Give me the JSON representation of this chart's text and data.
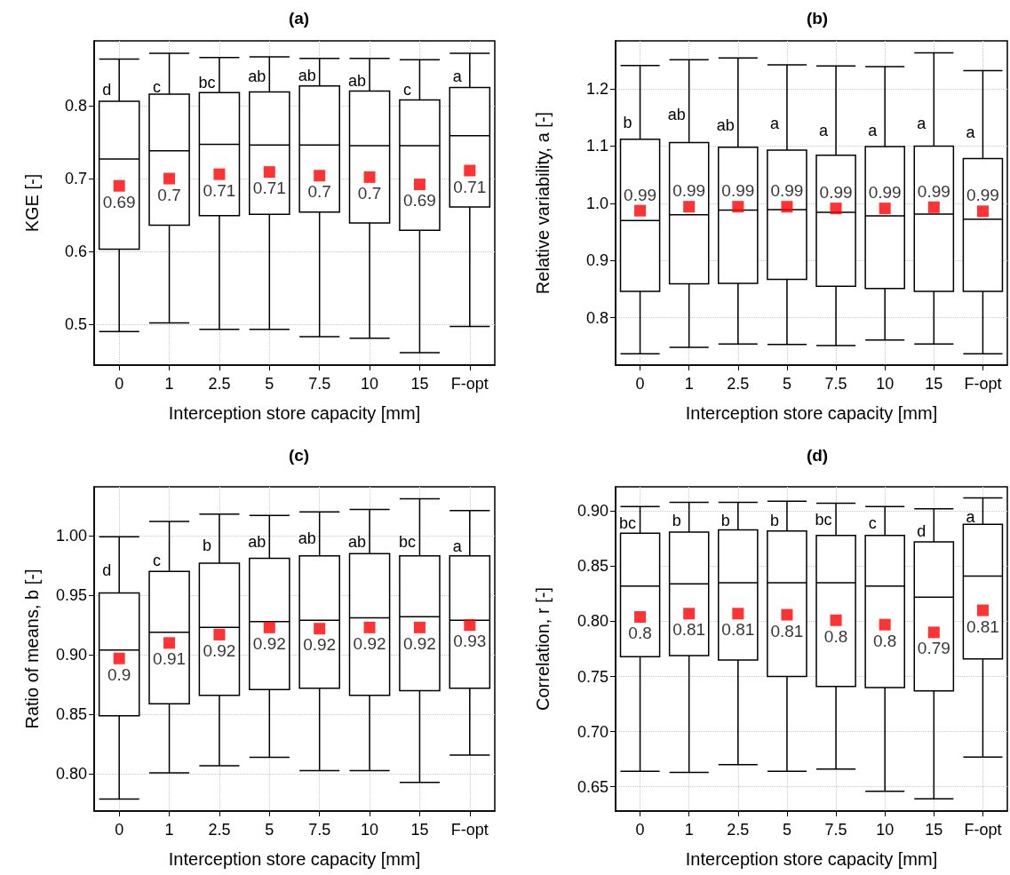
{
  "chart_data": [
    {
      "type": "box",
      "title": "(a)",
      "xlabel": "Interception store capacity [mm]",
      "ylabel": "KGE [-]",
      "categories": [
        "0",
        "1",
        "2.5",
        "5",
        "7.5",
        "10",
        "15",
        "F-opt"
      ],
      "grid": true,
      "marker": "square",
      "ylim": [
        0.444,
        0.889
      ],
      "yticks": [
        0.5,
        0.6,
        0.7,
        0.8
      ],
      "boxes": [
        {
          "low": 0.49,
          "q1": 0.603,
          "median": 0.727,
          "q3": 0.806,
          "high": 0.864
        },
        {
          "low": 0.502,
          "q1": 0.636,
          "median": 0.738,
          "q3": 0.816,
          "high": 0.872
        },
        {
          "low": 0.493,
          "q1": 0.649,
          "median": 0.747,
          "q3": 0.818,
          "high": 0.866
        },
        {
          "low": 0.493,
          "q1": 0.651,
          "median": 0.746,
          "q3": 0.819,
          "high": 0.867
        },
        {
          "low": 0.483,
          "q1": 0.654,
          "median": 0.746,
          "q3": 0.827,
          "high": 0.865
        },
        {
          "low": 0.481,
          "q1": 0.639,
          "median": 0.745,
          "q3": 0.82,
          "high": 0.865
        },
        {
          "low": 0.461,
          "q1": 0.629,
          "median": 0.745,
          "q3": 0.808,
          "high": 0.863
        },
        {
          "low": 0.497,
          "q1": 0.661,
          "median": 0.759,
          "q3": 0.825,
          "high": 0.872
        }
      ],
      "series": [
        {
          "type": "scatter",
          "color": "#ff0000",
          "x": [
            "0",
            "1",
            "2.5",
            "5",
            "7.5",
            "10",
            "15",
            "F-opt"
          ],
          "values": [
            0.69,
            0.7,
            0.706,
            0.709,
            0.704,
            0.702,
            0.692,
            0.711
          ],
          "value_labels": [
            "0.69",
            "0.7",
            "0.71",
            "0.71",
            "0.7",
            "0.7",
            "0.69",
            "0.71"
          ]
        }
      ],
      "annotations": [
        {
          "text": "d",
          "x": "0",
          "y": 0.822
        },
        {
          "text": "c",
          "x": "1",
          "y": 0.826
        },
        {
          "text": "bc",
          "x": "2.5",
          "y": 0.832
        },
        {
          "text": "ab",
          "x": "5",
          "y": 0.84
        },
        {
          "text": "ab",
          "x": "7.5",
          "y": 0.841
        },
        {
          "text": "ab",
          "x": "10",
          "y": 0.834
        },
        {
          "text": "c",
          "x": "15",
          "y": 0.822
        },
        {
          "text": "a",
          "x": "F-opt",
          "y": 0.84
        }
      ]
    },
    {
      "type": "box",
      "title": "(b)",
      "xlabel": "Interception store capacity [mm]",
      "ylabel": "Relative variability, a [-]",
      "categories": [
        "0",
        "1",
        "2.5",
        "5",
        "7.5",
        "10",
        "15",
        "F-opt"
      ],
      "grid": true,
      "marker": "square",
      "ylim": [
        0.717,
        1.284
      ],
      "yticks": [
        0.8,
        0.9,
        {
          "value": 1,
          "label": "1.0"
        },
        1.1,
        1.2
      ],
      "boxes": [
        {
          "low": 0.737,
          "q1": 0.846,
          "median": 0.97,
          "q3": 1.112,
          "high": 1.241
        },
        {
          "low": 0.748,
          "q1": 0.859,
          "median": 0.98,
          "q3": 1.106,
          "high": 1.251
        },
        {
          "low": 0.754,
          "q1": 0.86,
          "median": 0.988,
          "q3": 1.098,
          "high": 1.254
        },
        {
          "low": 0.753,
          "q1": 0.867,
          "median": 0.989,
          "q3": 1.093,
          "high": 1.242
        },
        {
          "low": 0.751,
          "q1": 0.855,
          "median": 0.984,
          "q3": 1.084,
          "high": 1.24
        },
        {
          "low": 0.761,
          "q1": 0.851,
          "median": 0.978,
          "q3": 1.099,
          "high": 1.239
        },
        {
          "low": 0.754,
          "q1": 0.846,
          "median": 0.981,
          "q3": 1.1,
          "high": 1.263
        },
        {
          "low": 0.737,
          "q1": 0.846,
          "median": 0.972,
          "q3": 1.078,
          "high": 1.232
        }
      ],
      "series": [
        {
          "type": "scatter",
          "color": "#ff0000",
          "x": [
            "0",
            "1",
            "2.5",
            "5",
            "7.5",
            "10",
            "15",
            "F-opt"
          ],
          "values": [
            0.987,
            0.994,
            0.994,
            0.994,
            0.991,
            0.991,
            0.993,
            0.986
          ],
          "value_labels": [
            "0.99",
            "0.99",
            "0.99",
            "0.99",
            "0.99",
            "0.99",
            "0.99",
            "0.99"
          ]
        }
      ],
      "annotations": [
        {
          "text": "b",
          "x": "0",
          "y": 1.141
        },
        {
          "text": "ab",
          "x": "1",
          "y": 1.155
        },
        {
          "text": "ab",
          "x": "2.5",
          "y": 1.136
        },
        {
          "text": "a",
          "x": "5",
          "y": 1.139
        },
        {
          "text": "a",
          "x": "7.5",
          "y": 1.127
        },
        {
          "text": "a",
          "x": "10",
          "y": 1.127
        },
        {
          "text": "a",
          "x": "15",
          "y": 1.139
        },
        {
          "text": "a",
          "x": "F-opt",
          "y": 1.124
        }
      ]
    },
    {
      "type": "box",
      "title": "(c)",
      "xlabel": "Interception store capacity [mm]",
      "ylabel": "Ratio of means, b [-]",
      "categories": [
        "0",
        "1",
        "2.5",
        "5",
        "7.5",
        "10",
        "15",
        "F-opt"
      ],
      "grid": true,
      "marker": "square",
      "ylim": [
        0.769,
        1.041
      ],
      "yticks": [
        {
          "value": 0.8,
          "label": "0.80"
        },
        0.85,
        {
          "value": 0.9,
          "label": "0.90"
        },
        0.95,
        {
          "value": 1,
          "label": "1.00"
        }
      ],
      "boxes": [
        {
          "low": 0.779,
          "q1": 0.849,
          "median": 0.904,
          "q3": 0.952,
          "high": 0.999
        },
        {
          "low": 0.801,
          "q1": 0.859,
          "median": 0.919,
          "q3": 0.97,
          "high": 1.012
        },
        {
          "low": 0.807,
          "q1": 0.866,
          "median": 0.923,
          "q3": 0.977,
          "high": 1.018
        },
        {
          "low": 0.814,
          "q1": 0.871,
          "median": 0.928,
          "q3": 0.981,
          "high": 1.017
        },
        {
          "low": 0.803,
          "q1": 0.872,
          "median": 0.929,
          "q3": 0.983,
          "high": 1.02
        },
        {
          "low": 0.803,
          "q1": 0.866,
          "median": 0.931,
          "q3": 0.985,
          "high": 1.022
        },
        {
          "low": 0.793,
          "q1": 0.87,
          "median": 0.932,
          "q3": 0.983,
          "high": 1.031
        },
        {
          "low": 0.816,
          "q1": 0.872,
          "median": 0.929,
          "q3": 0.983,
          "high": 1.021
        }
      ],
      "series": [
        {
          "type": "scatter",
          "color": "#ff0000",
          "x": [
            "0",
            "1",
            "2.5",
            "5",
            "7.5",
            "10",
            "15",
            "F-opt"
          ],
          "values": [
            0.897,
            0.91,
            0.917,
            0.923,
            0.922,
            0.923,
            0.923,
            0.925
          ],
          "value_labels": [
            "0.9",
            "0.91",
            "0.92",
            "0.92",
            "0.92",
            "0.92",
            "0.92",
            "0.93"
          ]
        }
      ],
      "annotations": [
        {
          "text": "d",
          "x": "0",
          "y": 0.971
        },
        {
          "text": "c",
          "x": "1",
          "y": 0.979
        },
        {
          "text": "b",
          "x": "2.5",
          "y": 0.992
        },
        {
          "text": "ab",
          "x": "5",
          "y": 0.995
        },
        {
          "text": "ab",
          "x": "7.5",
          "y": 0.998
        },
        {
          "text": "ab",
          "x": "10",
          "y": 0.995
        },
        {
          "text": "bc",
          "x": "15",
          "y": 0.995
        },
        {
          "text": "a",
          "x": "F-opt",
          "y": 0.991
        }
      ]
    },
    {
      "type": "box",
      "title": "(d)",
      "xlabel": "Interception store capacity [mm]",
      "ylabel": "Correlation, r [-]",
      "categories": [
        "0",
        "1",
        "2.5",
        "5",
        "7.5",
        "10",
        "15",
        "F-opt"
      ],
      "grid": true,
      "marker": "square",
      "ylim": [
        0.628,
        0.922
      ],
      "yticks": [
        0.65,
        {
          "value": 0.7,
          "label": "0.70"
        },
        0.75,
        {
          "value": 0.8,
          "label": "0.80"
        },
        0.85,
        {
          "value": 0.9,
          "label": "0.90"
        }
      ],
      "boxes": [
        {
          "low": 0.664,
          "q1": 0.768,
          "median": 0.832,
          "q3": 0.88,
          "high": 0.904
        },
        {
          "low": 0.663,
          "q1": 0.769,
          "median": 0.834,
          "q3": 0.881,
          "high": 0.908
        },
        {
          "low": 0.67,
          "q1": 0.765,
          "median": 0.835,
          "q3": 0.883,
          "high": 0.908
        },
        {
          "low": 0.664,
          "q1": 0.75,
          "median": 0.835,
          "q3": 0.882,
          "high": 0.909
        },
        {
          "low": 0.666,
          "q1": 0.741,
          "median": 0.835,
          "q3": 0.878,
          "high": 0.907
        },
        {
          "low": 0.646,
          "q1": 0.74,
          "median": 0.832,
          "q3": 0.878,
          "high": 0.904
        },
        {
          "low": 0.639,
          "q1": 0.737,
          "median": 0.822,
          "q3": 0.872,
          "high": 0.902
        },
        {
          "low": 0.677,
          "q1": 0.766,
          "median": 0.841,
          "q3": 0.888,
          "high": 0.912
        }
      ],
      "series": [
        {
          "type": "scatter",
          "color": "#ff0000",
          "x": [
            "0",
            "1",
            "2.5",
            "5",
            "7.5",
            "10",
            "15",
            "F-opt"
          ],
          "values": [
            0.804,
            0.807,
            0.807,
            0.806,
            0.801,
            0.797,
            0.79,
            0.81
          ],
          "value_labels": [
            "0.8",
            "0.81",
            "0.81",
            "0.81",
            "0.8",
            "0.8",
            "0.79",
            "0.81"
          ]
        }
      ],
      "annotations": [
        {
          "text": "bc",
          "x": "0",
          "y": 0.889
        },
        {
          "text": "b",
          "x": "1",
          "y": 0.891
        },
        {
          "text": "b",
          "x": "2.5",
          "y": 0.891
        },
        {
          "text": "b",
          "x": "5",
          "y": 0.891
        },
        {
          "text": "bc",
          "x": "7.5",
          "y": 0.892
        },
        {
          "text": "c",
          "x": "10",
          "y": 0.889
        },
        {
          "text": "d",
          "x": "15",
          "y": 0.882
        },
        {
          "text": "a",
          "x": "F-opt",
          "y": 0.895
        }
      ]
    }
  ]
}
